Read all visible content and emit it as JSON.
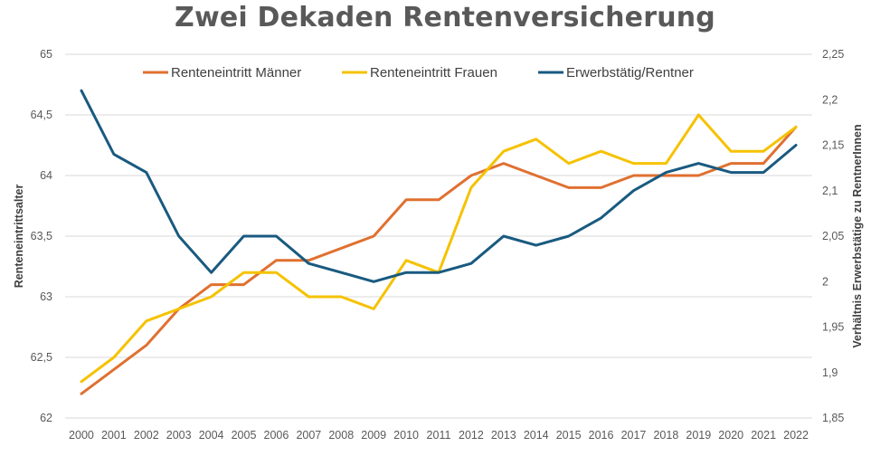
{
  "chart_data": {
    "type": "line",
    "title": "Zwei Dekaden Rentenversicherung",
    "x": [
      "2000",
      "2001",
      "2002",
      "2003",
      "2004",
      "2005",
      "2006",
      "2007",
      "2008",
      "2009",
      "2010",
      "2011",
      "2012",
      "2013",
      "2014",
      "2015",
      "2016",
      "2017",
      "2018",
      "2019",
      "2020",
      "2021",
      "2022"
    ],
    "ylabel": "Renteneintrittsalter",
    "ylabel_right": "Verhältnis Erwerbstätige zu RentnerInnen",
    "ylim": [
      62,
      65
    ],
    "ylim_right": [
      1.85,
      2.25
    ],
    "yticks": [
      "62",
      "62,5",
      "63",
      "63,5",
      "64",
      "64,5",
      "65"
    ],
    "yticks_right": [
      "1,85",
      "1,9",
      "1,95",
      "2",
      "2,05",
      "2,1",
      "2,15",
      "2,2",
      "2,25"
    ],
    "grid": true,
    "legend_position": "top",
    "series": [
      {
        "name": "Renteneintritt Männer",
        "axis": "left",
        "color": "#E07030",
        "values": [
          62.2,
          62.4,
          62.6,
          62.9,
          63.1,
          63.1,
          63.3,
          63.3,
          63.4,
          63.5,
          63.8,
          63.8,
          64.0,
          64.1,
          64.0,
          63.9,
          63.9,
          64.0,
          64.0,
          64.0,
          64.1,
          64.1,
          64.4
        ]
      },
      {
        "name": "Renteneintritt Frauen",
        "axis": "left",
        "color": "#F5C200",
        "values": [
          62.3,
          62.5,
          62.8,
          62.9,
          63.0,
          63.2,
          63.2,
          63.0,
          63.0,
          62.9,
          63.3,
          63.2,
          63.9,
          64.2,
          64.3,
          64.1,
          64.2,
          64.1,
          64.1,
          64.5,
          64.2,
          64.2,
          64.4
        ]
      },
      {
        "name": "Erwerbstätig/Rentner",
        "axis": "right",
        "color": "#195A80",
        "values": [
          2.21,
          2.14,
          2.12,
          2.05,
          2.01,
          2.05,
          2.05,
          2.02,
          2.01,
          2.0,
          2.01,
          2.01,
          2.02,
          2.05,
          2.04,
          2.05,
          2.07,
          2.1,
          2.12,
          2.13,
          2.12,
          2.12,
          2.15
        ]
      }
    ]
  }
}
